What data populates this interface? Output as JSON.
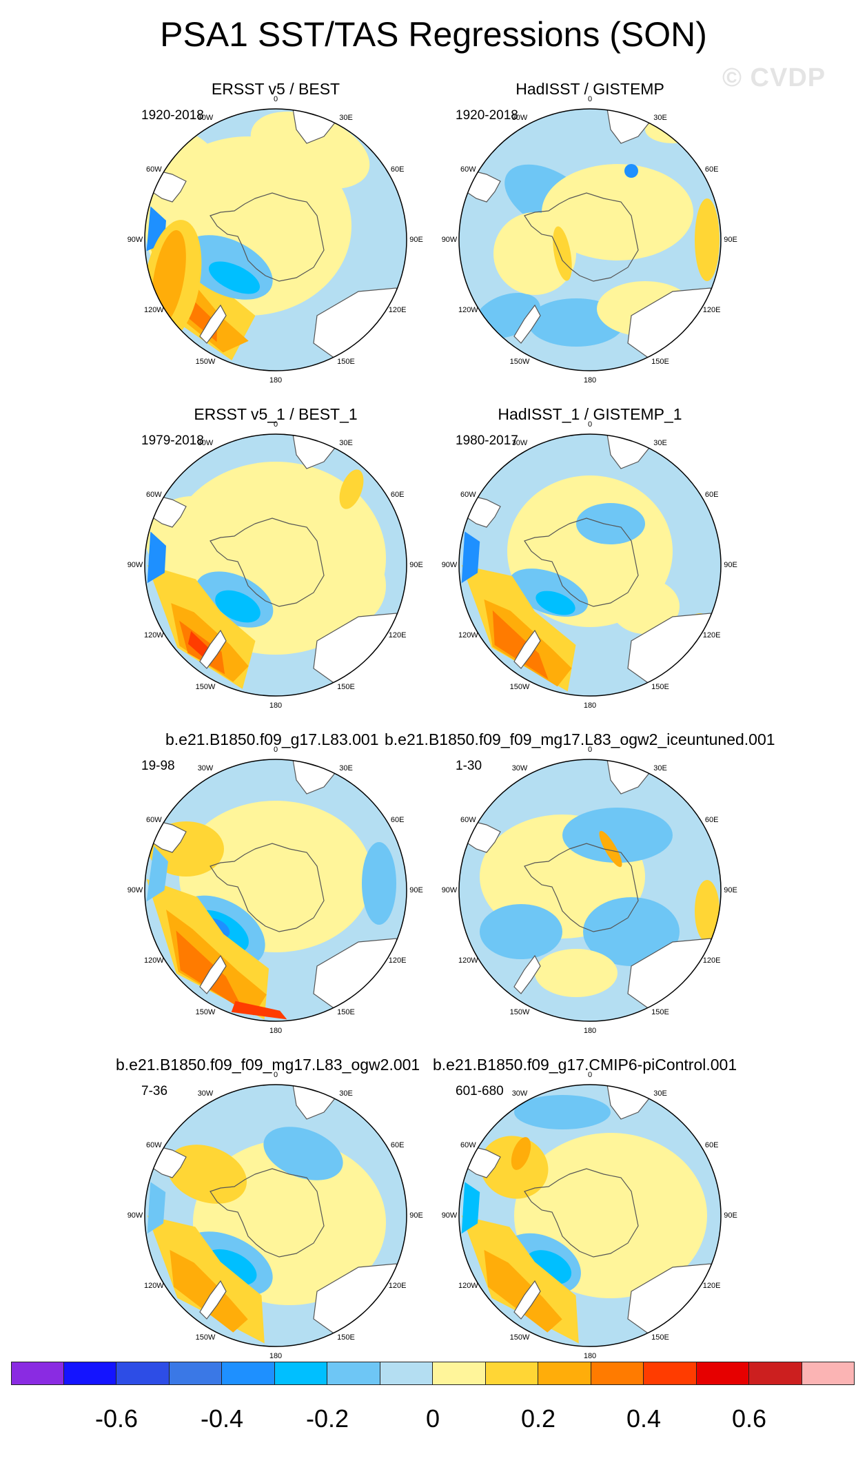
{
  "title": "PSA1 SST/TAS Regressions (SON)",
  "watermark": "© CVDP",
  "longitude_labels": [
    "0",
    "30E",
    "60E",
    "90E",
    "120E",
    "150E",
    "180",
    "150W",
    "120W",
    "90W",
    "60W",
    "30W"
  ],
  "panels": [
    {
      "title": "ERSST v5 / BEST",
      "period": "1920-2018",
      "pattern": "obs_long"
    },
    {
      "title": "HadISST / GISTEMP",
      "period": "1920-2018",
      "pattern": "hadisst_long"
    },
    {
      "title": "ERSST v5_1 / BEST_1",
      "period": "1979-2018",
      "pattern": "obs_short"
    },
    {
      "title": "HadISST_1 / GISTEMP_1",
      "period": "1980-2017",
      "pattern": "hadisst_short"
    },
    {
      "title": "b.e21.B1850.f09_g17.L83.001",
      "period": "19-98",
      "pattern": "model_l83"
    },
    {
      "title": "b.e21.B1850.f09_f09_mg17.L83_ogw2_iceuntuned.001",
      "period": "1-30",
      "pattern": "model_iceuntuned"
    },
    {
      "title": "b.e21.B1850.f09_f09_mg17.L83_ogw2.001",
      "period": "7-36",
      "pattern": "model_ogw2"
    },
    {
      "title": "b.e21.B1850.f09_g17.CMIP6-piControl.001",
      "period": "601-680",
      "pattern": "model_picontrol"
    }
  ],
  "colorbar": {
    "colors": [
      "#8a2be2",
      "#1414ff",
      "#2d4de6",
      "#3a78e6",
      "#1e90ff",
      "#00bfff",
      "#6ec6f5",
      "#b4def2",
      "#fff59a",
      "#ffd635",
      "#ffad0a",
      "#ff7b00",
      "#ff3c00",
      "#e60000",
      "#cc1f1f",
      "#fbb4b4"
    ],
    "labels": [
      "-0.6",
      "-0.4",
      "-0.2",
      "0",
      "0.2",
      "0.4",
      "0.6"
    ],
    "label_values": [
      -0.6,
      -0.4,
      -0.2,
      0,
      0.2,
      0.4,
      0.6
    ],
    "min": -0.8,
    "max": 0.8
  }
}
